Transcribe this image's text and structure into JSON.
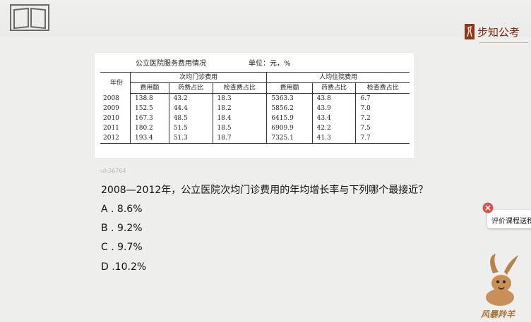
{
  "header": {
    "book_icon": "book-icon",
    "brand_name": "步知公考",
    "brand_color": "#7a2a10"
  },
  "table": {
    "title": "公立医院服务费用情况",
    "unit": "单位：元，%",
    "year_header": "年份",
    "group1": "次均门诊费用",
    "group2": "人均住院费用",
    "sub_headers": [
      "费用额",
      "药费占比",
      "检查费占比",
      "费用额",
      "药费占比",
      "检查费占比"
    ],
    "rows": [
      [
        "2008",
        "138.8",
        "43.2",
        "18.3",
        "5363.3",
        "43.8",
        "6.7"
      ],
      [
        "2009",
        "152.5",
        "44.4",
        "18.2",
        "5856.2",
        "43.9",
        "7.0"
      ],
      [
        "2010",
        "167.3",
        "48.5",
        "18.4",
        "6415.9",
        "43.4",
        "7.2"
      ],
      [
        "2011",
        "180.2",
        "51.5",
        "18.5",
        "6909.9",
        "42.2",
        "7.5"
      ],
      [
        "2012",
        "193.4",
        "51.3",
        "18.7",
        "7325.1",
        "41.3",
        "7.7"
      ]
    ]
  },
  "watermark": "-uh36764",
  "question": {
    "text": "2008—2012年，公立医院次均门诊费用的年均增长率与下列哪个最接近？",
    "options": [
      "A . 8.6%",
      "B . 9.2%",
      "C . 9.7%",
      "D .10.2%"
    ]
  },
  "feedback": {
    "label": "评价课程送积分",
    "icon": "close-icon"
  },
  "mascot": {
    "caption": "风暴羚羊",
    "icon": "antelope-mascot-icon",
    "color": "#a8753a"
  }
}
